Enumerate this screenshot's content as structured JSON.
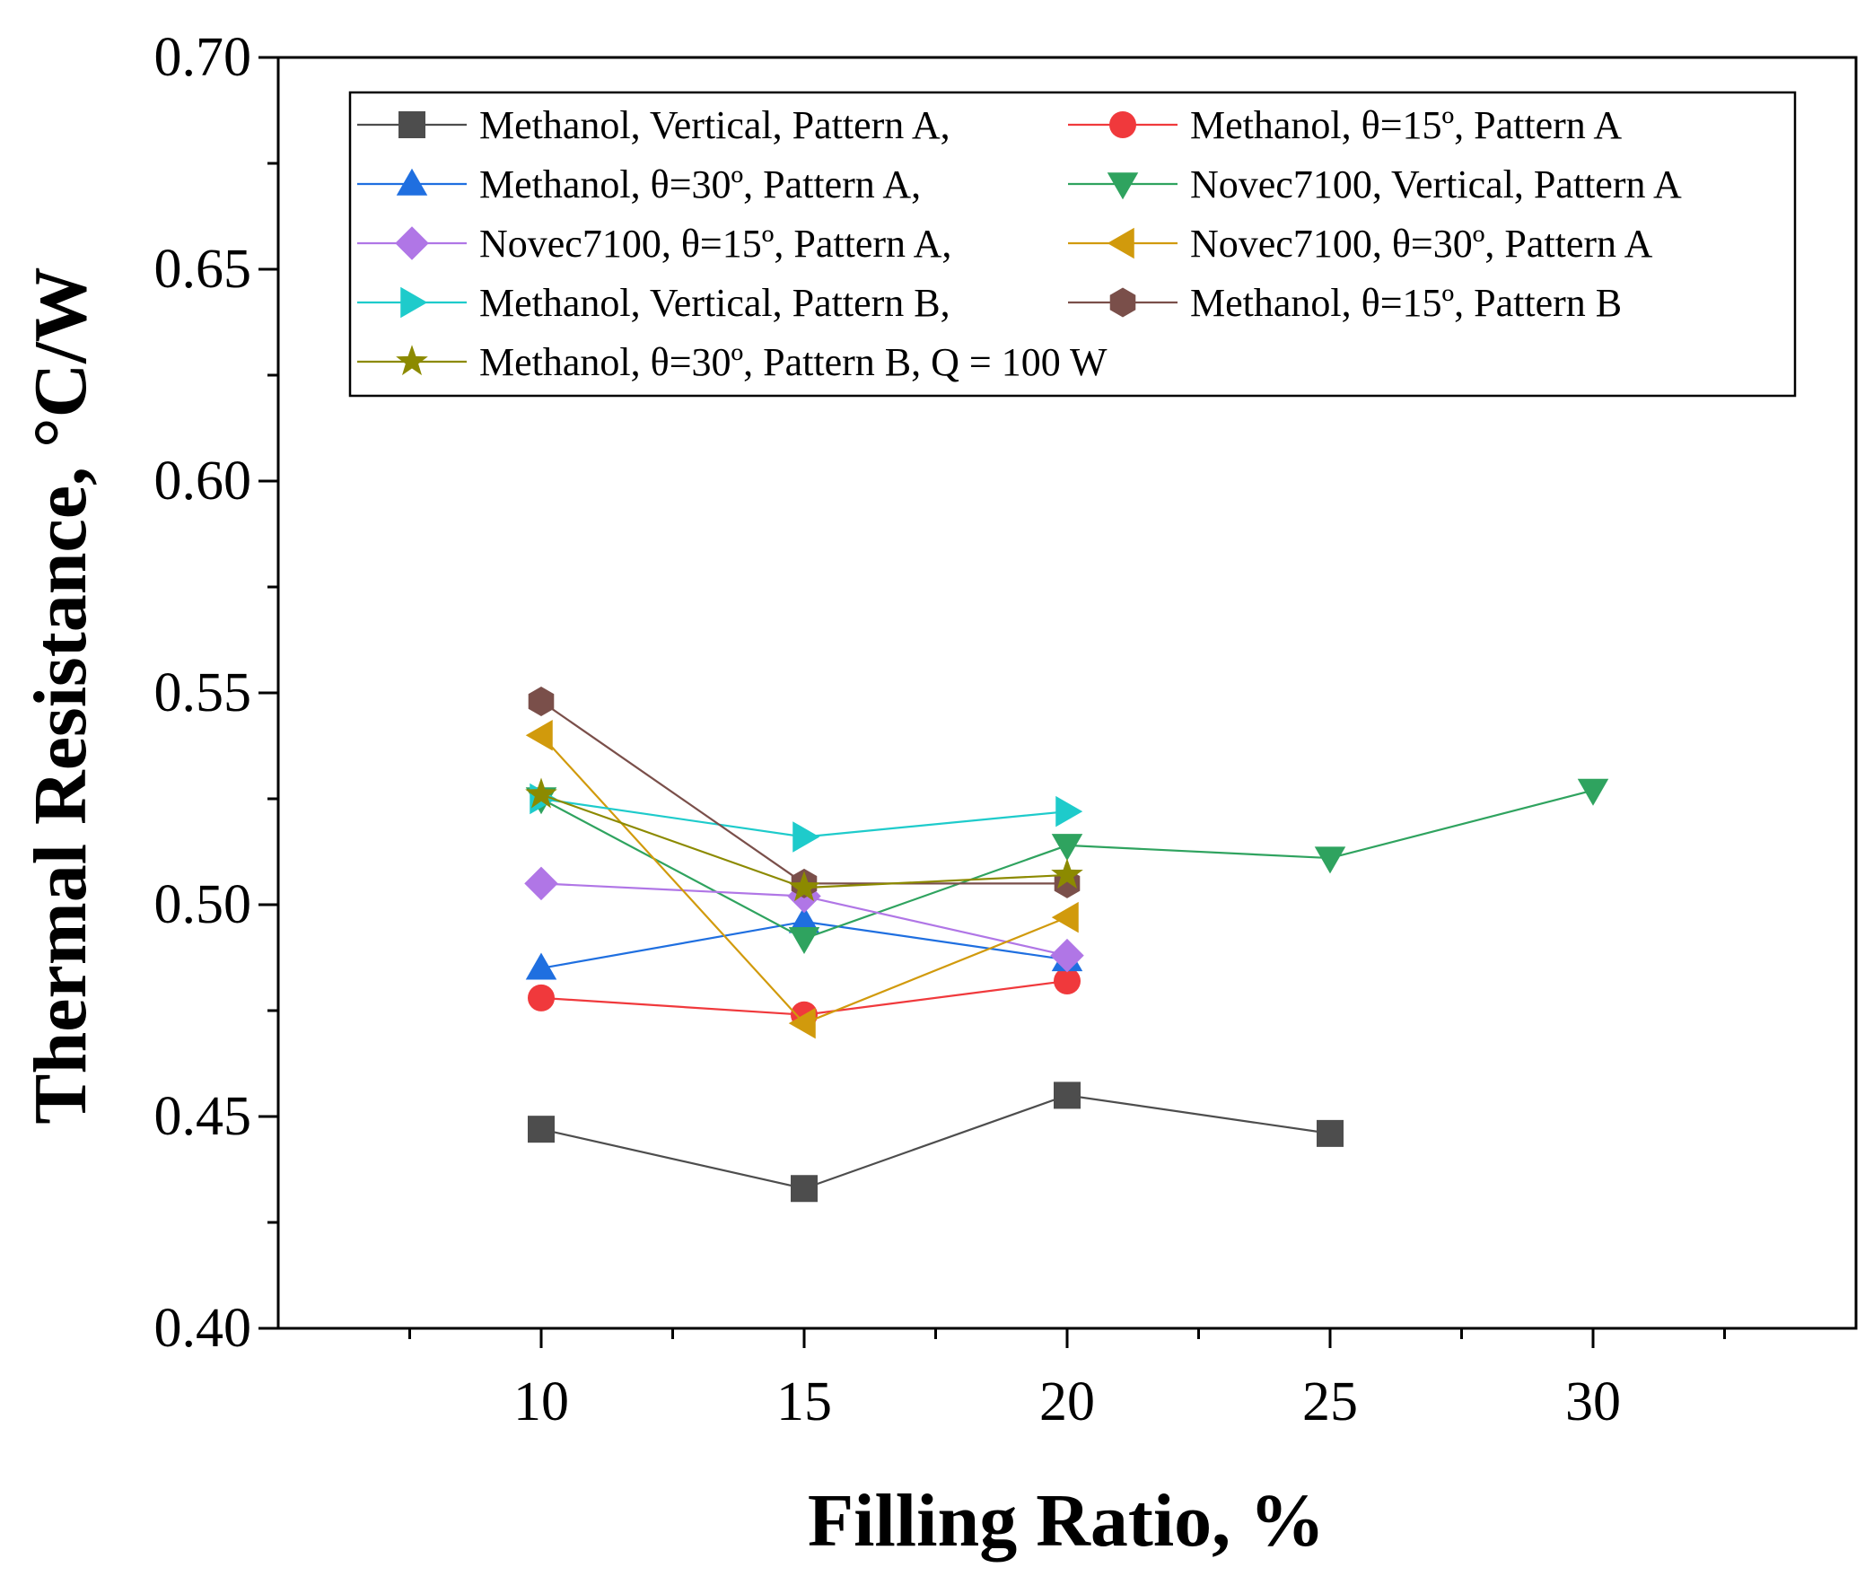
{
  "chart_data": {
    "type": "line",
    "xlabel": "Filling Ratio, %",
    "ylabel": "Thermal Resistance, °C/W",
    "xlim": [
      5,
      35
    ],
    "ylim": [
      0.4,
      0.7
    ],
    "xticks": [
      10,
      15,
      20,
      25,
      30
    ],
    "xtick_labels": [
      "10",
      "15",
      "20",
      "25",
      "30"
    ],
    "yticks": [
      0.4,
      0.45,
      0.5,
      0.55,
      0.6,
      0.65,
      0.7
    ],
    "ytick_labels": [
      "0.40",
      "0.45",
      "0.50",
      "0.55",
      "0.60",
      "0.65",
      "0.70"
    ],
    "grid": false,
    "legend_position": "top",
    "series": [
      {
        "name": "Methanol, Vertical, Pattern A,",
        "color": "#4d4d4d",
        "marker": "square",
        "x": [
          10,
          15,
          20,
          25
        ],
        "y": [
          0.447,
          0.433,
          0.455,
          0.446
        ]
      },
      {
        "name": "Methanol, θ=15º, Pattern A",
        "color": "#f0393c",
        "marker": "circle",
        "x": [
          10,
          15,
          20
        ],
        "y": [
          0.478,
          0.474,
          0.482
        ]
      },
      {
        "name": "Methanol, θ=30º, Pattern A,",
        "color": "#1f6fe0",
        "marker": "triangle-up",
        "x": [
          10,
          15,
          20
        ],
        "y": [
          0.485,
          0.496,
          0.487
        ]
      },
      {
        "name": "Novec7100, Vertical, Pattern A",
        "color": "#2fa35f",
        "marker": "triangle-down",
        "x": [
          10,
          15,
          20,
          25,
          30
        ],
        "y": [
          0.525,
          0.492,
          0.514,
          0.511,
          0.527
        ]
      },
      {
        "name": "Novec7100, θ=15º, Pattern A,",
        "color": "#b076e6",
        "marker": "diamond",
        "x": [
          10,
          15,
          20
        ],
        "y": [
          0.505,
          0.502,
          0.488
        ]
      },
      {
        "name": "Novec7100, θ=30º, Pattern A",
        "color": "#d19a0c",
        "marker": "triangle-left",
        "x": [
          10,
          15,
          20
        ],
        "y": [
          0.54,
          0.472,
          0.497
        ]
      },
      {
        "name": "Methanol, Vertical, Pattern B,",
        "color": "#1ecbcb",
        "marker": "triangle-right",
        "x": [
          10,
          15,
          20
        ],
        "y": [
          0.525,
          0.516,
          0.522
        ]
      },
      {
        "name": "Methanol, θ=15º, Pattern B",
        "color": "#7a4f4a",
        "marker": "hexagon",
        "x": [
          10,
          15,
          20
        ],
        "y": [
          0.548,
          0.505,
          0.505
        ]
      },
      {
        "name": "Methanol, θ=30º, Pattern B, Q = 100 W",
        "color": "#8c8a00",
        "marker": "star",
        "x": [
          10,
          15,
          20
        ],
        "y": [
          0.526,
          0.504,
          0.507
        ]
      }
    ]
  }
}
